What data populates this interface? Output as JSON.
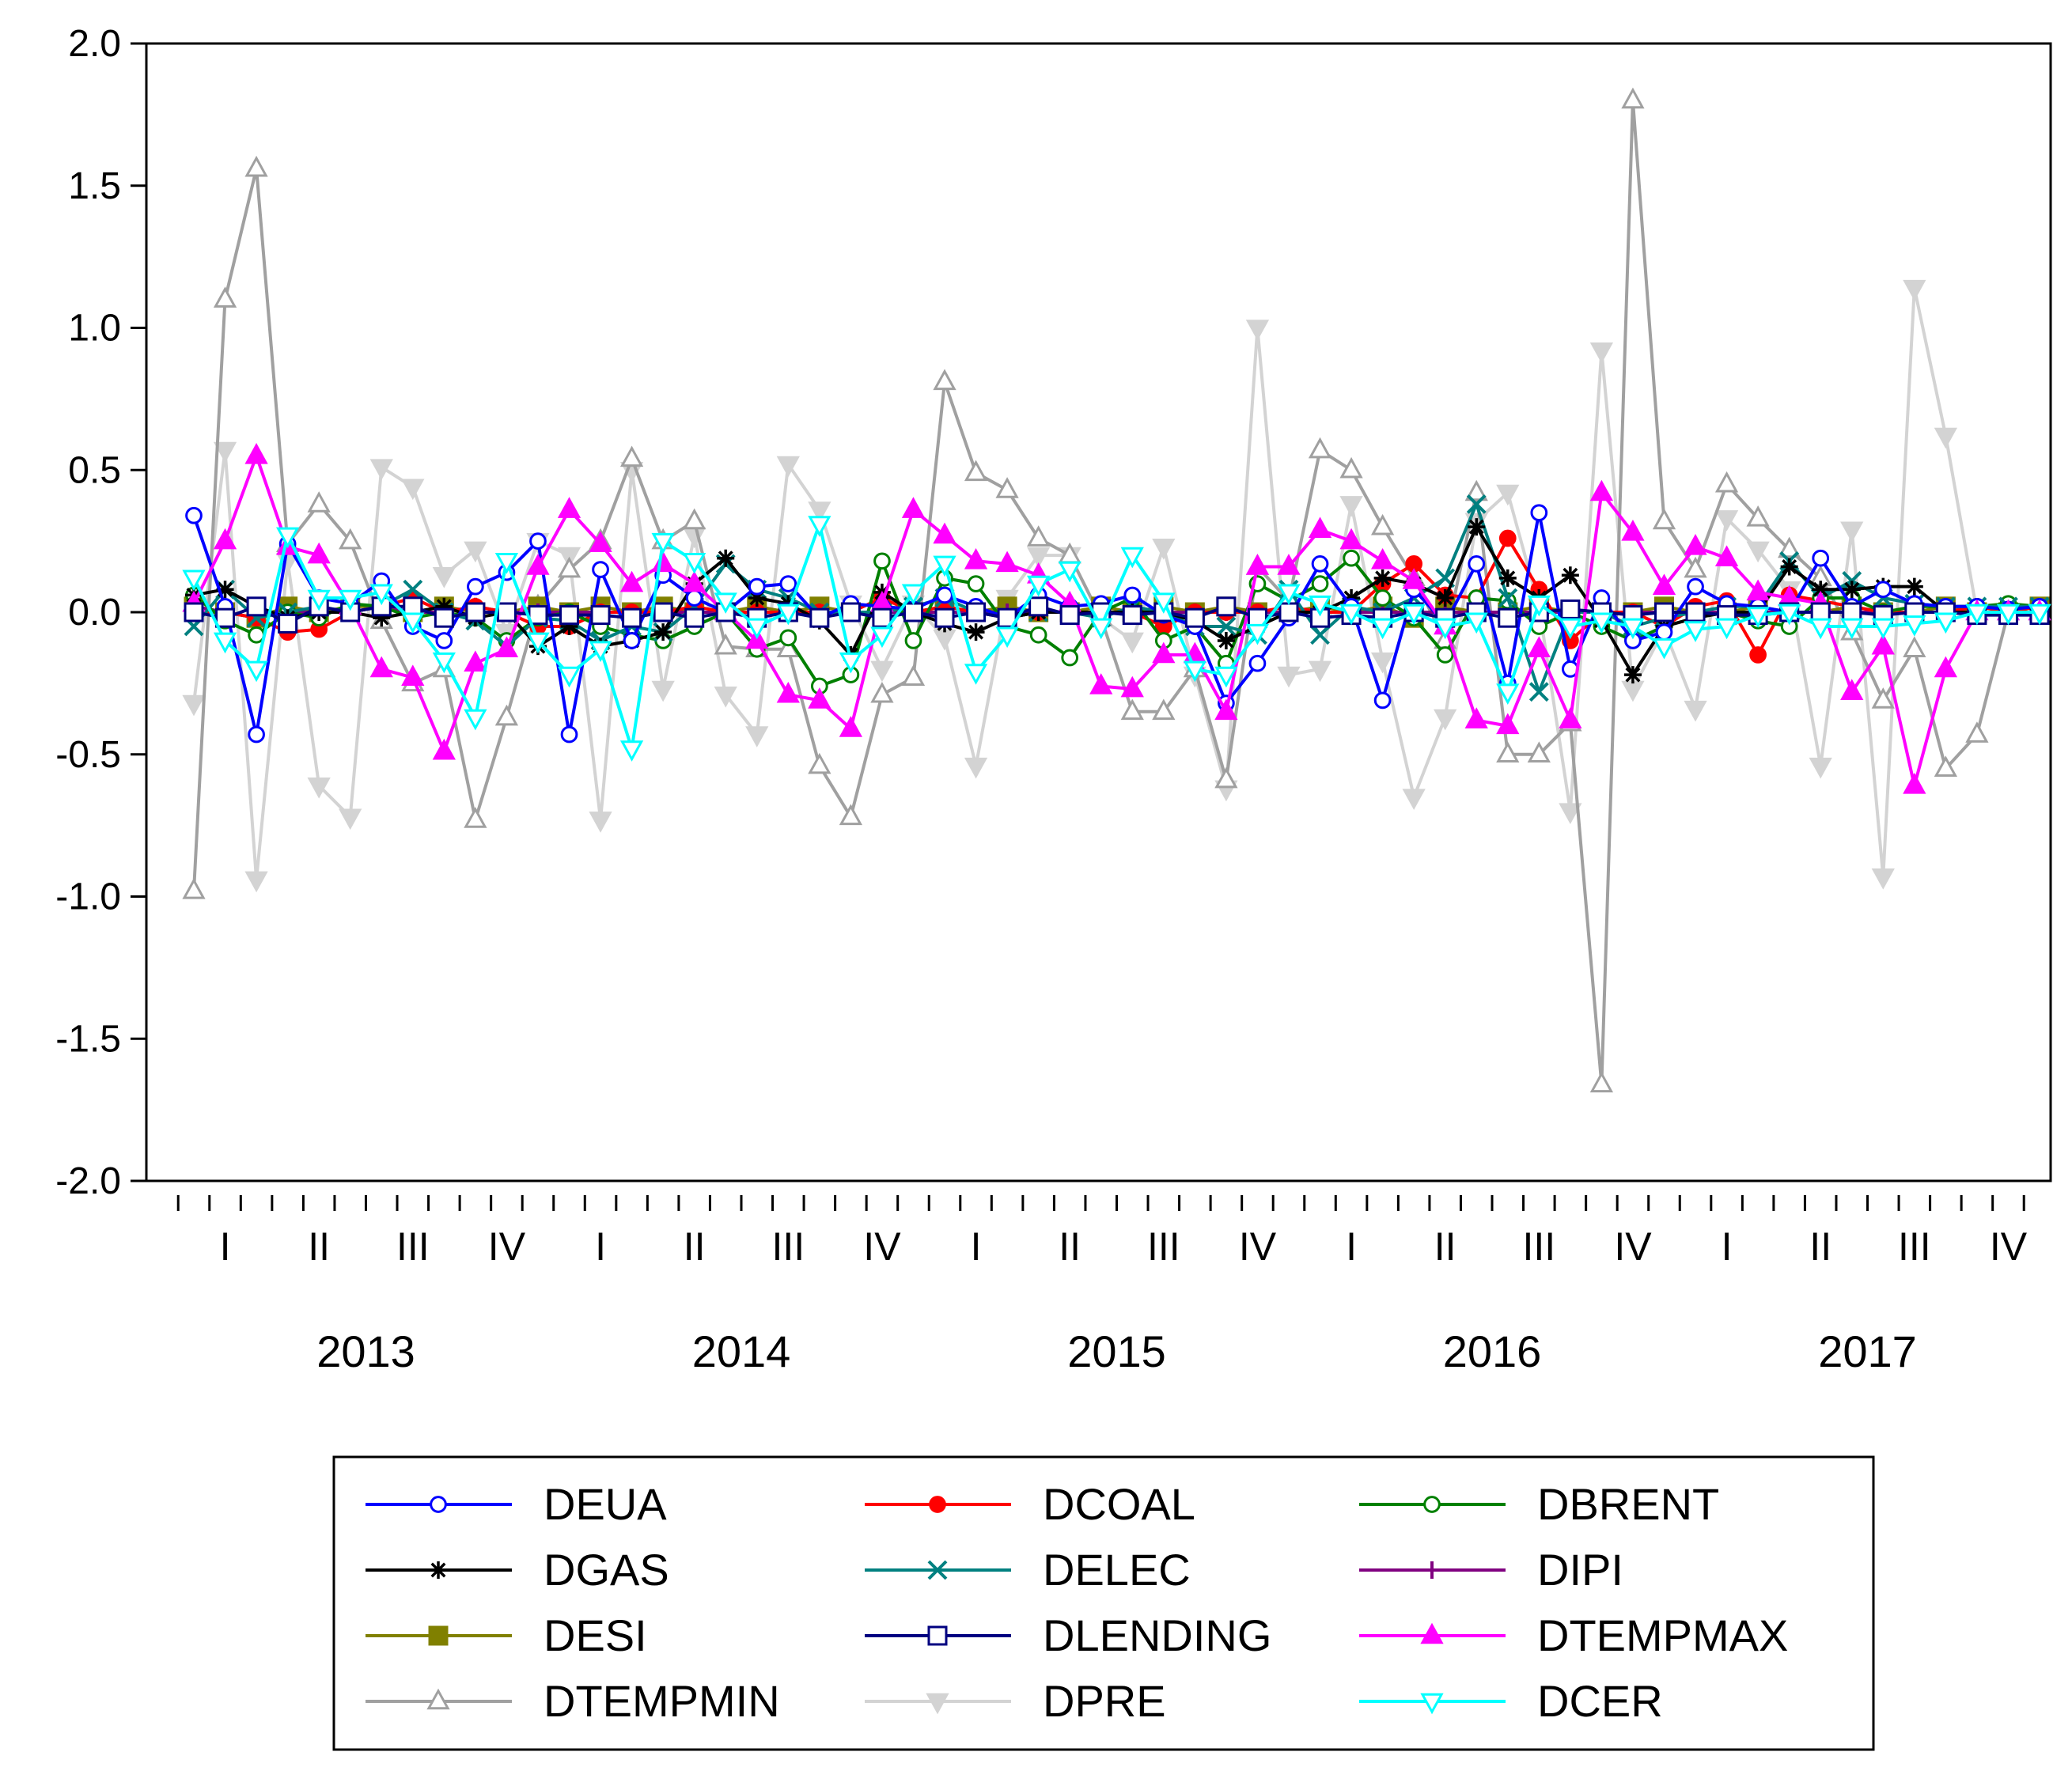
{
  "chart_data": {
    "type": "line",
    "title": "",
    "xlabel": "",
    "ylabel": "",
    "ylim": [
      -2.0,
      2.0
    ],
    "y_ticks": [
      "2.0",
      "1.5",
      "1.0",
      "0.5",
      "0.0",
      "-0.5",
      "-1.0",
      "-1.5",
      "-2.0"
    ],
    "quarter_labels": [
      "I",
      "II",
      "III",
      "IV",
      "I",
      "II",
      "III",
      "IV",
      "I",
      "II",
      "III",
      "IV",
      "I",
      "II",
      "III",
      "IV",
      "I",
      "II",
      "III",
      "IV"
    ],
    "year_labels": [
      "2013",
      "2014",
      "2015",
      "2016",
      "2017"
    ],
    "x": [
      "2013M01",
      "2013M02",
      "2013M03",
      "2013M04",
      "2013M05",
      "2013M06",
      "2013M07",
      "2013M08",
      "2013M09",
      "2013M10",
      "2013M11",
      "2013M12",
      "2014M01",
      "2014M02",
      "2014M03",
      "2014M04",
      "2014M05",
      "2014M06",
      "2014M07",
      "2014M08",
      "2014M09",
      "2014M10",
      "2014M11",
      "2014M12",
      "2015M01",
      "2015M02",
      "2015M03",
      "2015M04",
      "2015M05",
      "2015M06",
      "2015M07",
      "2015M08",
      "2015M09",
      "2015M10",
      "2015M11",
      "2015M12",
      "2016M01",
      "2016M02",
      "2016M03",
      "2016M04",
      "2016M05",
      "2016M06",
      "2016M07",
      "2016M08",
      "2016M09",
      "2016M10",
      "2016M11",
      "2016M12",
      "2017M01",
      "2017M02",
      "2017M03",
      "2017M04",
      "2017M05",
      "2017M06",
      "2017M07",
      "2017M08",
      "2017M09",
      "2017M10",
      "2017M11",
      "2017M12"
    ],
    "series": [
      {
        "name": "DEUA",
        "color": "#0000ff",
        "marker": "circle-open",
        "values": [
          0.34,
          0.02,
          -0.43,
          0.24,
          0.05,
          0.03,
          0.11,
          -0.05,
          -0.1,
          0.09,
          0.14,
          0.25,
          -0.43,
          0.15,
          -0.1,
          0.13,
          0.05,
          0.0,
          0.09,
          0.1,
          -0.02,
          0.03,
          0.02,
          0.01,
          0.06,
          0.02,
          -0.02,
          0.06,
          0.02,
          0.03,
          0.06,
          -0.01,
          -0.05,
          -0.32,
          -0.18,
          -0.02,
          0.17,
          0.02,
          -0.31,
          0.08,
          -0.04,
          0.17,
          -0.25,
          0.35,
          -0.2,
          0.05,
          -0.1,
          -0.07,
          0.09,
          0.03,
          0.02,
          0.0,
          0.19,
          0.02,
          0.08,
          0.03,
          0.02,
          0.02,
          0.01,
          0.02
        ]
      },
      {
        "name": "DCOAL",
        "color": "#ff0000",
        "marker": "circle-filled",
        "values": [
          0.0,
          0.0,
          -0.02,
          -0.07,
          -0.06,
          0.0,
          0.02,
          0.05,
          0.0,
          0.02,
          0.0,
          -0.05,
          -0.05,
          0.0,
          0.0,
          0.0,
          0.02,
          0.0,
          0.0,
          0.0,
          0.0,
          0.0,
          0.05,
          0.0,
          0.02,
          0.0,
          -0.02,
          0.0,
          0.0,
          0.0,
          0.0,
          -0.05,
          0.0,
          0.0,
          0.0,
          0.02,
          0.0,
          0.0,
          0.1,
          0.17,
          0.06,
          0.05,
          0.26,
          0.08,
          -0.1,
          0.0,
          0.0,
          -0.05,
          0.02,
          0.04,
          -0.15,
          0.06,
          0.04,
          0.02,
          0.0,
          0.0,
          0.0,
          0.02,
          0.0,
          0.02
        ]
      },
      {
        "name": "DBRENT",
        "color": "#008000",
        "marker": "circle-open",
        "values": [
          0.06,
          -0.03,
          -0.08,
          0.0,
          -0.02,
          0.03,
          0.02,
          -0.02,
          0.0,
          -0.02,
          -0.1,
          -0.02,
          0.0,
          -0.05,
          -0.08,
          -0.1,
          -0.05,
          0.0,
          -0.13,
          -0.09,
          -0.26,
          -0.22,
          0.18,
          -0.1,
          0.12,
          0.1,
          -0.05,
          -0.08,
          -0.16,
          0.0,
          0.05,
          -0.1,
          -0.05,
          -0.18,
          0.1,
          0.04,
          0.1,
          0.19,
          0.05,
          -0.02,
          -0.15,
          0.05,
          0.04,
          -0.05,
          0.0,
          -0.05,
          -0.1,
          -0.05,
          -0.02,
          0.0,
          -0.03,
          -0.05,
          0.05,
          0.05,
          0.0,
          0.02,
          0.02,
          0.02,
          0.03,
          0.02
        ]
      },
      {
        "name": "DGAS",
        "color": "#000000",
        "marker": "star",
        "values": [
          0.06,
          0.08,
          0.02,
          -0.02,
          0.0,
          0.0,
          -0.02,
          0.0,
          0.02,
          -0.02,
          0.0,
          -0.12,
          -0.05,
          -0.12,
          -0.1,
          -0.07,
          0.1,
          0.19,
          0.05,
          0.03,
          -0.03,
          -0.15,
          0.07,
          0.0,
          -0.04,
          -0.07,
          -0.02,
          0.0,
          0.0,
          0.0,
          0.0,
          0.0,
          -0.03,
          -0.1,
          -0.05,
          0.0,
          0.0,
          0.05,
          0.12,
          0.1,
          0.05,
          0.3,
          0.12,
          0.05,
          0.13,
          -0.03,
          -0.22,
          -0.05,
          -0.02,
          0.0,
          0.0,
          0.16,
          0.08,
          0.08,
          0.09,
          0.09,
          0.0,
          0.0,
          0.0,
          0.0
        ]
      },
      {
        "name": "DELEC",
        "color": "#008080",
        "marker": "x",
        "values": [
          -0.05,
          0.08,
          -0.02,
          0.0,
          0.02,
          0.0,
          0.02,
          0.08,
          0.0,
          -0.03,
          -0.12,
          -0.02,
          -0.03,
          -0.1,
          -0.05,
          -0.07,
          0.02,
          0.17,
          0.08,
          0.05,
          0.0,
          0.0,
          0.0,
          0.02,
          0.05,
          0.0,
          -0.02,
          0.0,
          0.0,
          -0.02,
          0.02,
          0.0,
          -0.05,
          -0.05,
          -0.08,
          0.08,
          -0.08,
          0.02,
          0.0,
          0.05,
          0.12,
          0.38,
          0.05,
          -0.28,
          0.0,
          0.0,
          -0.05,
          -0.02,
          0.0,
          0.02,
          0.02,
          0.18,
          0.05,
          0.11,
          0.05,
          0.03,
          0.02,
          0.02,
          0.02,
          0.02
        ]
      },
      {
        "name": "DIPI",
        "color": "#800080",
        "marker": "plus",
        "values": [
          0.02,
          0.0,
          -0.02,
          0.0,
          0.0,
          0.0,
          0.02,
          0.0,
          0.0,
          0.02,
          0.0,
          0.0,
          0.0,
          0.0,
          0.0,
          0.0,
          0.0,
          0.0,
          0.0,
          0.0,
          0.0,
          0.0,
          0.0,
          0.0,
          0.0,
          0.0,
          0.0,
          0.0,
          0.0,
          0.0,
          0.0,
          0.0,
          0.0,
          0.0,
          0.0,
          0.0,
          0.0,
          0.0,
          0.0,
          0.0,
          0.0,
          0.0,
          0.0,
          0.0,
          0.0,
          0.0,
          0.0,
          0.0,
          0.0,
          0.0,
          0.0,
          0.0,
          0.0,
          0.0,
          0.0,
          0.0,
          0.0,
          0.0,
          0.0,
          0.0
        ]
      },
      {
        "name": "DESI",
        "color": "#808000",
        "marker": "square-filled",
        "values": [
          0.02,
          0.0,
          -0.02,
          0.02,
          0.0,
          0.02,
          0.02,
          0.0,
          0.02,
          0.0,
          0.0,
          0.02,
          0.0,
          0.02,
          0.0,
          0.02,
          0.0,
          0.0,
          0.02,
          0.0,
          0.02,
          0.0,
          0.0,
          0.0,
          0.02,
          0.0,
          0.02,
          0.0,
          0.0,
          0.02,
          0.0,
          0.02,
          0.0,
          0.02,
          0.0,
          0.0,
          0.02,
          0.0,
          0.02,
          -0.02,
          0.02,
          0.0,
          0.0,
          0.02,
          0.0,
          0.0,
          0.0,
          0.02,
          0.0,
          0.0,
          0.02,
          0.0,
          0.0,
          0.02,
          0.0,
          0.0,
          0.02,
          0.0,
          0.0,
          0.02
        ]
      },
      {
        "name": "DLENDING",
        "color": "#000080",
        "marker": "square-open",
        "values": [
          0.0,
          -0.02,
          0.02,
          -0.04,
          0.02,
          0.0,
          0.02,
          0.02,
          -0.02,
          0.0,
          0.0,
          -0.01,
          -0.01,
          -0.01,
          -0.02,
          0.0,
          -0.02,
          0.0,
          -0.02,
          0.0,
          -0.02,
          0.0,
          -0.02,
          0.0,
          -0.02,
          0.0,
          -0.02,
          0.02,
          -0.01,
          0.0,
          -0.01,
          0.0,
          -0.02,
          0.02,
          -0.02,
          0.0,
          -0.02,
          -0.01,
          -0.02,
          0.0,
          -0.02,
          0.0,
          -0.02,
          0.0,
          0.01,
          0.0,
          -0.01,
          0.0,
          0.0,
          -0.01,
          -0.01,
          0.0,
          0.0,
          0.0,
          -0.01,
          0.0,
          0.0,
          -0.01,
          -0.01,
          -0.01
        ]
      },
      {
        "name": "DTEMPMAX",
        "color": "#ff00ff",
        "marker": "triangle-filled",
        "values": [
          0.03,
          0.25,
          0.55,
          0.23,
          0.2,
          0.02,
          -0.2,
          -0.23,
          -0.49,
          -0.18,
          -0.13,
          0.16,
          0.36,
          0.24,
          0.1,
          0.17,
          0.1,
          0.0,
          -0.1,
          -0.29,
          -0.31,
          -0.41,
          0.03,
          0.36,
          0.27,
          0.18,
          0.17,
          0.13,
          0.03,
          -0.26,
          -0.27,
          -0.15,
          -0.15,
          -0.35,
          0.16,
          0.16,
          0.29,
          0.25,
          0.18,
          0.11,
          -0.05,
          -0.38,
          -0.4,
          -0.13,
          -0.38,
          0.42,
          0.28,
          0.09,
          0.23,
          0.19,
          0.07,
          0.05,
          0.03,
          -0.28,
          -0.12,
          -0.61,
          -0.2,
          0.0,
          0.0,
          0.0
        ]
      },
      {
        "name": "DTEMPMIN",
        "color": "#a0a0a0",
        "marker": "triangle-open",
        "values": [
          -0.98,
          1.1,
          1.56,
          0.24,
          0.38,
          0.25,
          -0.03,
          -0.25,
          -0.2,
          -0.73,
          -0.37,
          0.02,
          0.15,
          0.25,
          0.54,
          0.25,
          0.32,
          -0.12,
          -0.13,
          -0.13,
          -0.54,
          -0.72,
          -0.29,
          -0.23,
          0.81,
          0.49,
          0.43,
          0.26,
          0.2,
          -0.02,
          -0.35,
          -0.35,
          -0.2,
          -0.59,
          0.16,
          0.04,
          0.57,
          0.5,
          0.3,
          0.12,
          -0.1,
          0.42,
          -0.5,
          -0.5,
          -0.39,
          -1.66,
          1.8,
          0.32,
          0.15,
          0.45,
          0.33,
          0.22,
          0.12,
          -0.07,
          -0.31,
          -0.13,
          -0.55,
          -0.43,
          0.0,
          0.0
        ]
      },
      {
        "name": "DPRE",
        "color": "#d3d3d3",
        "marker": "triangle-down-filled",
        "values": [
          -0.32,
          0.57,
          -0.94,
          0.18,
          -0.61,
          -0.72,
          0.51,
          0.44,
          0.13,
          0.22,
          -0.07,
          0.25,
          0.2,
          -0.73,
          0.5,
          -0.27,
          0.27,
          -0.29,
          -0.43,
          0.52,
          0.36,
          0.03,
          -0.2,
          0.03,
          -0.09,
          -0.54,
          0.05,
          0.2,
          0.2,
          -0.02,
          -0.1,
          0.23,
          -0.22,
          -0.62,
          1.0,
          -0.22,
          -0.2,
          0.38,
          -0.17,
          -0.65,
          -0.37,
          0.32,
          0.42,
          0.02,
          -0.7,
          0.92,
          -0.27,
          -0.06,
          -0.34,
          0.33,
          0.22,
          0.08,
          -0.54,
          0.29,
          -0.93,
          1.14,
          0.62,
          0.0,
          0.0,
          0.0
        ]
      },
      {
        "name": "DCER",
        "color": "#00ffff",
        "marker": "triangle-down-open",
        "values": [
          0.12,
          -0.1,
          -0.2,
          0.27,
          0.05,
          0.05,
          0.07,
          -0.03,
          -0.17,
          -0.37,
          0.18,
          -0.1,
          -0.22,
          -0.13,
          -0.48,
          0.25,
          0.18,
          0.04,
          -0.05,
          0.0,
          0.31,
          -0.17,
          -0.08,
          0.07,
          0.17,
          -0.21,
          -0.08,
          0.1,
          0.15,
          -0.05,
          0.2,
          0.04,
          -0.2,
          -0.22,
          -0.07,
          0.07,
          0.03,
          0.0,
          -0.05,
          0.0,
          -0.05,
          -0.03,
          -0.28,
          0.03,
          -0.05,
          -0.03,
          -0.05,
          -0.12,
          -0.06,
          -0.05,
          -0.01,
          0.0,
          -0.05,
          -0.05,
          -0.05,
          -0.04,
          -0.03,
          0.0,
          0.0,
          0.0
        ]
      }
    ],
    "legend_position": "bottom",
    "legend_order": [
      "DEUA",
      "DCOAL",
      "DBRENT",
      "DGAS",
      "DELEC",
      "DIPI",
      "DESI",
      "DLENDING",
      "DTEMPMAX",
      "DTEMPMIN",
      "DPRE",
      "DCER"
    ],
    "grid": false
  }
}
